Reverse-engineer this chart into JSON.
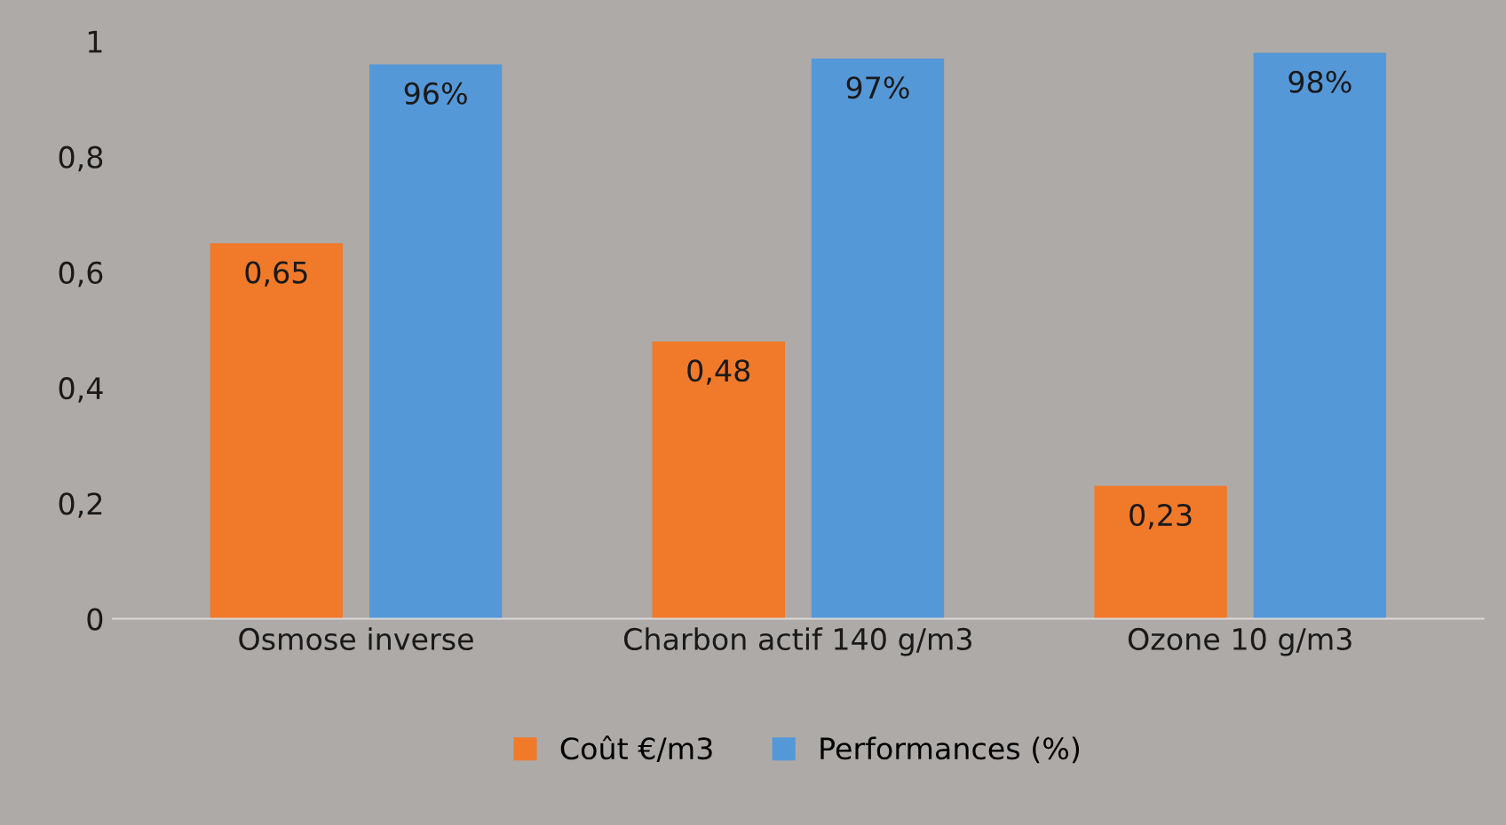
{
  "chart_data": {
    "type": "bar",
    "categories": [
      "Osmose inverse",
      "Charbon actif 140 g/m3",
      "Ozone 10 g/m3"
    ],
    "series": [
      {
        "name": "Coût €/m3",
        "color": "#f07a2a",
        "values": [
          0.65,
          0.48,
          0.23
        ],
        "value_labels": [
          "0,65",
          "0,48",
          "0,23"
        ]
      },
      {
        "name": "Performances (%)",
        "color": "#5598d8",
        "values": [
          0.96,
          0.97,
          0.98
        ],
        "value_labels": [
          "96%",
          "97%",
          "98%"
        ]
      }
    ],
    "ylim": [
      0,
      1
    ],
    "yticks": [
      0,
      {
        "value": 0.2,
        "label": "0,2"
      },
      {
        "value": 0.4,
        "label": "0,4"
      },
      {
        "value": 0.6,
        "label": "0,6"
      },
      {
        "value": 0.8,
        "label": "0,8"
      },
      1
    ],
    "grid": false,
    "legend": "bottom"
  }
}
